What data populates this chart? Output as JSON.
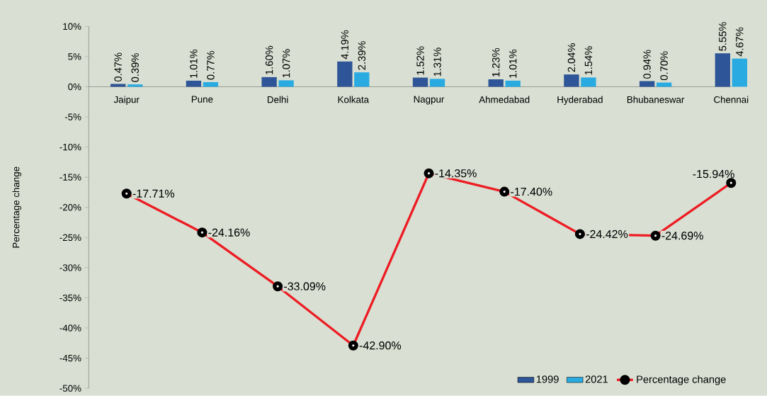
{
  "chart_data": {
    "type": "bar",
    "ylabel": "Percentage change",
    "categories": [
      "Jaipur",
      "Pune",
      "Delhi",
      "Kolkata",
      "Nagpur",
      "Ahmedabad",
      "Hyderabad",
      "Bhubaneswar",
      "Chennai"
    ],
    "series": [
      {
        "name": "1999",
        "color": "#2e5597",
        "values": [
          0.47,
          1.01,
          1.6,
          4.19,
          1.52,
          1.23,
          2.04,
          0.94,
          5.55
        ],
        "value_labels": [
          "0.47%",
          "1.01%",
          "1.60%",
          "4.19%",
          "1.52%",
          "1.23%",
          "2.04%",
          "0.94%",
          "5.55%"
        ]
      },
      {
        "name": "2021",
        "color": "#29abe2",
        "values": [
          0.39,
          0.77,
          1.07,
          2.39,
          1.31,
          1.01,
          1.54,
          0.7,
          4.67
        ],
        "value_labels": [
          "0.39%",
          "0.77%",
          "1.07%",
          "2.39%",
          "1.31%",
          "1.01%",
          "1.54%",
          "0.70%",
          "4.67%"
        ]
      },
      {
        "name": "Percentage change",
        "type": "line",
        "color": "#ed1c24",
        "marker": "circle",
        "values": [
          -17.71,
          -24.16,
          -33.09,
          -42.9,
          -14.35,
          -17.4,
          -24.42,
          -24.69,
          -15.94
        ],
        "value_labels": [
          "-17.71%",
          "-24.16%",
          "-33.09%",
          "-42.90%",
          "-14.35%",
          "-17.40%",
          "-24.42%",
          "-24.69%",
          "-15.94%"
        ]
      }
    ],
    "ylim": [
      -50,
      10
    ],
    "yticks": [
      {
        "value": -50,
        "label": "-50%"
      },
      {
        "value": -45,
        "label": "-45%"
      },
      {
        "value": -40,
        "label": "-40%"
      },
      {
        "value": -35,
        "label": "-35%"
      },
      {
        "value": -30,
        "label": "-30%"
      },
      {
        "value": -25,
        "label": "-25%"
      },
      {
        "value": -20,
        "label": "-20%"
      },
      {
        "value": -15,
        "label": "-15%"
      },
      {
        "value": -10,
        "label": "-10%"
      },
      {
        "value": -5,
        "label": "-5%"
      },
      {
        "value": 0,
        "label": "0%"
      },
      {
        "value": 5,
        "label": "5%"
      },
      {
        "value": 10,
        "label": "10%"
      }
    ],
    "grid": false,
    "legend": "bottom right"
  }
}
